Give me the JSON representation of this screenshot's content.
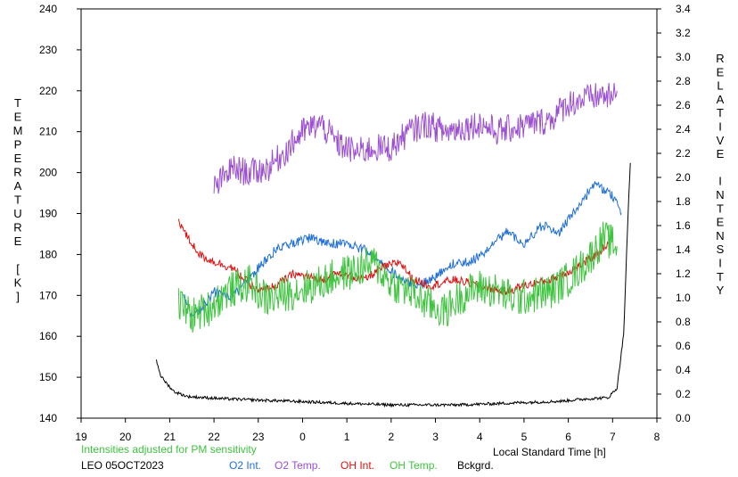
{
  "chart_data": {
    "type": "line",
    "left_axis_label": "TEMPERATURE [K]",
    "right_axis_label": "RELATIVE INTENSITY",
    "xlabel": "Local Standard Time [h]",
    "x_ticks": [
      "19",
      "20",
      "21",
      "22",
      "23",
      "0",
      "1",
      "2",
      "3",
      "4",
      "5",
      "6",
      "7",
      "8"
    ],
    "left_ticks": [
      140,
      150,
      160,
      170,
      180,
      190,
      200,
      210,
      220,
      230,
      240
    ],
    "right_ticks": [
      "0.0",
      "0.2",
      "0.4",
      "0.6",
      "0.8",
      "1.0",
      "1.2",
      "1.4",
      "1.6",
      "1.8",
      "2.0",
      "2.2",
      "2.4",
      "2.6",
      "2.8",
      "3.0",
      "3.2",
      "3.4"
    ],
    "ylim_left": [
      140,
      240
    ],
    "ylim_right": [
      0.0,
      3.4
    ],
    "xlim": [
      19,
      32
    ],
    "note": "Intensities adjusted for PM sensitivity",
    "station": "LEO 05OCT2023",
    "grid": false,
    "legend_position": "bottom",
    "series": [
      {
        "name": "O2 Int.",
        "axis": "right",
        "color": "#1f6fd6",
        "noise": 0.04,
        "x": [
          21.3,
          21.5,
          21.7,
          22.0,
          22.3,
          22.6,
          23.0,
          23.4,
          23.8,
          24.2,
          24.6,
          25.0,
          25.4,
          25.8,
          26.2,
          26.6,
          27.0,
          27.4,
          27.8,
          28.2,
          28.6,
          29.0,
          29.4,
          29.8,
          30.2,
          30.6,
          31.0,
          31.2
        ],
        "y": [
          1.0,
          0.85,
          0.9,
          1.05,
          1.0,
          1.08,
          1.25,
          1.4,
          1.45,
          1.5,
          1.45,
          1.45,
          1.4,
          1.3,
          1.15,
          1.1,
          1.18,
          1.28,
          1.3,
          1.4,
          1.55,
          1.45,
          1.6,
          1.55,
          1.75,
          1.95,
          1.85,
          1.7
        ]
      },
      {
        "name": "O2 Temp.",
        "axis": "left",
        "color": "#9b4fd1",
        "noise": 3.5,
        "x": [
          22.0,
          22.4,
          22.8,
          23.2,
          23.6,
          24.0,
          24.4,
          24.8,
          25.2,
          25.6,
          26.0,
          26.4,
          26.8,
          27.2,
          27.6,
          28.0,
          28.4,
          28.8,
          29.2,
          29.6,
          30.0,
          30.4,
          30.8,
          31.0,
          31.1
        ],
        "y": [
          196,
          201,
          200,
          201,
          205,
          210,
          212,
          207,
          205,
          206,
          206,
          210,
          212,
          210,
          211,
          212,
          210,
          211,
          212,
          213,
          217,
          218,
          219,
          218,
          220
        ]
      },
      {
        "name": "OH Int.",
        "axis": "right",
        "color": "#e01010",
        "noise": 0.035,
        "x": [
          21.2,
          21.4,
          21.7,
          22.0,
          22.4,
          23.0,
          23.4,
          23.8,
          24.4,
          24.8,
          25.4,
          25.8,
          26.2,
          26.5,
          26.9,
          27.4,
          27.8,
          28.2,
          28.6,
          29.0,
          29.6,
          30.2,
          30.6,
          30.9
        ],
        "y": [
          1.65,
          1.5,
          1.35,
          1.3,
          1.25,
          1.05,
          1.1,
          1.2,
          1.15,
          1.2,
          1.15,
          1.25,
          1.3,
          1.15,
          1.1,
          1.15,
          1.12,
          1.08,
          1.05,
          1.1,
          1.15,
          1.25,
          1.35,
          1.45
        ]
      },
      {
        "name": "OH Temp.",
        "axis": "left",
        "color": "#3ec43e",
        "noise": 4.5,
        "x": [
          21.2,
          21.5,
          21.9,
          22.3,
          22.8,
          23.2,
          23.8,
          24.4,
          24.8,
          25.2,
          25.6,
          26.0,
          26.4,
          26.8,
          27.2,
          27.6,
          28.0,
          28.4,
          28.8,
          29.2,
          29.6,
          30.0,
          30.4,
          30.8,
          31.1
        ],
        "y": [
          168,
          165,
          167,
          171,
          173,
          169,
          171,
          173,
          175,
          176,
          178,
          173,
          171,
          168,
          166,
          170,
          172,
          171,
          169,
          170,
          171,
          174,
          178,
          184,
          182
        ]
      },
      {
        "name": "Bckgrd.",
        "axis": "right",
        "color": "#000000",
        "noise": 0.012,
        "x": [
          20.7,
          20.8,
          20.95,
          21.1,
          21.4,
          21.8,
          22.3,
          23.0,
          23.8,
          24.5,
          25.2,
          26.0,
          26.8,
          27.5,
          28.3,
          29.0,
          29.8,
          30.4,
          30.9,
          31.1,
          31.25,
          31.35,
          31.4
        ],
        "y": [
          0.48,
          0.35,
          0.28,
          0.22,
          0.18,
          0.17,
          0.16,
          0.15,
          0.14,
          0.13,
          0.12,
          0.11,
          0.11,
          0.11,
          0.12,
          0.13,
          0.14,
          0.16,
          0.17,
          0.25,
          0.7,
          1.7,
          2.12
        ]
      }
    ]
  }
}
